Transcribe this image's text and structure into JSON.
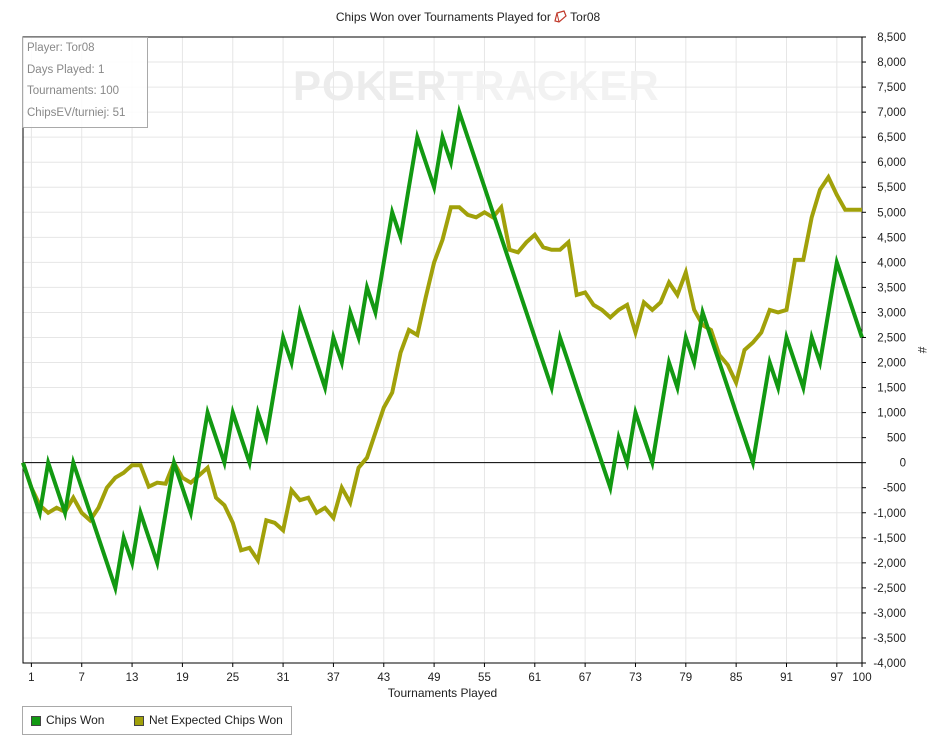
{
  "header": {
    "title_prefix": "Chips Won over Tournaments Played for",
    "player_name": "Tor08"
  },
  "info": {
    "player": "Player: Tor08",
    "days_played": "Days Played: 1",
    "tournaments": "Tournaments: 100",
    "chips_ev": "ChipsEV/turniej: 51"
  },
  "watermark": {
    "part1": "POKER",
    "part2": "TRACKER"
  },
  "legend": {
    "items": [
      "Chips Won",
      "Net Expected Chips Won"
    ]
  },
  "colors": {
    "chips_won": "#129912",
    "net_expected": "#a1a10a",
    "zero_line": "#000000",
    "grid": "#e6e6e6"
  },
  "chart_data": {
    "type": "line",
    "title": "Chips Won over Tournaments Played for Tor08",
    "xlabel": "Tournaments Played",
    "ylabel": "#",
    "xlim": [
      0,
      100
    ],
    "ylim": [
      -4000,
      8500
    ],
    "x_ticks": [
      1,
      7,
      13,
      19,
      25,
      31,
      37,
      43,
      49,
      55,
      61,
      67,
      73,
      79,
      85,
      91,
      97,
      100
    ],
    "y_ticks": [
      8500,
      8000,
      7500,
      7000,
      6500,
      6000,
      5500,
      5000,
      4500,
      4000,
      3500,
      3000,
      2500,
      2000,
      1500,
      1000,
      500,
      0,
      -500,
      -1000,
      -1500,
      -2000,
      -2500,
      -3000,
      -3500,
      -4000
    ],
    "y_tick_labels": [
      "8,500",
      "8,000",
      "7,500",
      "7,000",
      "6,500",
      "6,000",
      "5,500",
      "5,000",
      "4,500",
      "4,000",
      "3,500",
      "3,000",
      "2,500",
      "2,000",
      "1,500",
      "1,000",
      "500",
      "0",
      "-500",
      "-1,000",
      "-1,500",
      "-2,000",
      "-2,500",
      "-3,000",
      "-3,500",
      "-4,000"
    ],
    "grid": true,
    "legend_position": "bottom-left",
    "series": [
      {
        "name": "Chips Won",
        "x": [
          0,
          1,
          2,
          3,
          4,
          5,
          6,
          7,
          8,
          9,
          10,
          11,
          12,
          13,
          14,
          15,
          16,
          17,
          18,
          19,
          20,
          21,
          22,
          23,
          24,
          25,
          26,
          27,
          28,
          29,
          30,
          31,
          32,
          33,
          34,
          35,
          36,
          37,
          38,
          39,
          40,
          41,
          42,
          43,
          44,
          45,
          46,
          47,
          48,
          49,
          50,
          51,
          52,
          53,
          54,
          55,
          56,
          57,
          58,
          59,
          60,
          61,
          62,
          63,
          64,
          65,
          66,
          67,
          68,
          69,
          70,
          71,
          72,
          73,
          74,
          75,
          76,
          77,
          78,
          79,
          80,
          81,
          82,
          83,
          84,
          85,
          86,
          87,
          88,
          89,
          90,
          91,
          92,
          93,
          94,
          95,
          96,
          97,
          98,
          99,
          100
        ],
        "values": [
          0,
          -500,
          -1000,
          0,
          -500,
          -1000,
          0,
          -500,
          -1000,
          -1500,
          -2000,
          -2500,
          -1500,
          -2000,
          -1000,
          -1500,
          -2000,
          -1000,
          0,
          -500,
          -1000,
          0,
          1000,
          500,
          0,
          1000,
          500,
          0,
          1000,
          500,
          1500,
          2500,
          2000,
          3000,
          2500,
          2000,
          1500,
          2500,
          2000,
          3000,
          2500,
          3500,
          3000,
          4000,
          5000,
          4500,
          5500,
          6500,
          6000,
          5500,
          6500,
          6000,
          7000,
          6500,
          6000,
          5500,
          5000,
          4500,
          4000,
          3500,
          3000,
          2500,
          2000,
          1500,
          2500,
          2000,
          1500,
          1000,
          500,
          0,
          -500,
          500,
          0,
          1000,
          500,
          0,
          1000,
          2000,
          1500,
          2500,
          2000,
          3000,
          2500,
          2000,
          1500,
          1000,
          500,
          0,
          1000,
          2000,
          1500,
          2500,
          2000,
          1500,
          2500,
          2000,
          3000,
          4000,
          3500,
          3000,
          2500
        ]
      },
      {
        "name": "Net Expected Chips Won",
        "x": [
          0,
          1,
          2,
          3,
          4,
          5,
          6,
          7,
          8,
          9,
          10,
          11,
          12,
          13,
          14,
          15,
          16,
          17,
          18,
          19,
          20,
          21,
          22,
          23,
          24,
          25,
          26,
          27,
          28,
          29,
          30,
          31,
          32,
          33,
          34,
          35,
          36,
          37,
          38,
          39,
          40,
          41,
          42,
          43,
          44,
          45,
          46,
          47,
          48,
          49,
          50,
          51,
          52,
          53,
          54,
          55,
          56,
          57,
          58,
          59,
          60,
          61,
          62,
          63,
          64,
          65,
          66,
          67,
          68,
          69,
          70,
          71,
          72,
          73,
          74,
          75,
          76,
          77,
          78,
          79,
          80,
          81,
          82,
          83,
          84,
          85,
          86,
          87,
          88,
          89,
          90,
          91,
          92,
          93,
          94,
          95,
          96,
          97,
          98,
          99,
          100
        ],
        "values": [
          0,
          -500,
          -850,
          -1000,
          -900,
          -980,
          -700,
          -1000,
          -1150,
          -900,
          -500,
          -300,
          -200,
          -50,
          -50,
          -480,
          -400,
          -420,
          0,
          -300,
          -400,
          -250,
          -100,
          -700,
          -850,
          -1200,
          -1750,
          -1700,
          -1950,
          -1150,
          -1200,
          -1350,
          -550,
          -750,
          -700,
          -1000,
          -900,
          -1100,
          -500,
          -800,
          -100,
          100,
          600,
          1100,
          1400,
          2200,
          2650,
          2550,
          3300,
          4000,
          4450,
          5100,
          5100,
          4950,
          4900,
          5000,
          4900,
          5100,
          4250,
          4200,
          4400,
          4550,
          4300,
          4250,
          4250,
          4400,
          3350,
          3400,
          3150,
          3050,
          2900,
          3050,
          3150,
          2600,
          3200,
          3050,
          3200,
          3600,
          3350,
          3800,
          3050,
          2750,
          2650,
          2150,
          1950,
          1600,
          2250,
          2400,
          2600,
          3050,
          3000,
          3050,
          4050,
          4050,
          4900,
          5450,
          5700,
          5350,
          5050,
          5050,
          5050
        ]
      }
    ]
  }
}
